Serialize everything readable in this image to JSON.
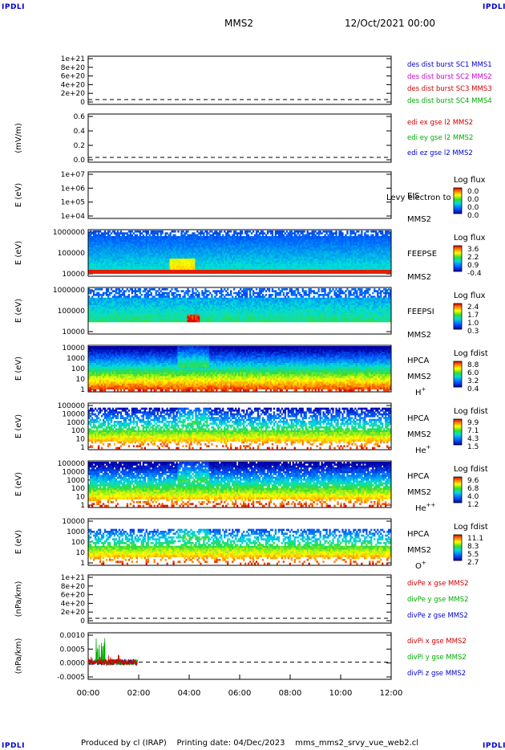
{
  "corner_label": "IPDLI",
  "header": {
    "spacecraft": "MMS2",
    "datetime": "12/Oct/2021 00:00"
  },
  "footer": "Produced by cl (IRAP)    Printing date: 04/Dec/2023    mms_mms2_srvy_vue_web2.cl",
  "chart_data": [
    {
      "type": "line",
      "id": "p1",
      "ylabel": "",
      "yticks": [
        "1e+21",
        "8e+20",
        "6e+20",
        "4e+20",
        "2e+20",
        "0"
      ],
      "series": [
        {
          "name": "des dist burst SC1 MMS1",
          "color": "#0000cc",
          "values": []
        },
        {
          "name": "des dist burst SC2 MMS2",
          "color": "#cc00cc",
          "values": []
        },
        {
          "name": "des dist burst SC3 MMS3",
          "color": "#cc0000",
          "values": []
        },
        {
          "name": "des dist burst SC4 MMS4",
          "color": "#00aa00",
          "values": []
        }
      ],
      "zero_line": true
    },
    {
      "type": "line",
      "id": "p2",
      "ylabel": "(mV/m)",
      "yticks": [
        "0.6",
        "0.4",
        "0.2",
        "0.0"
      ],
      "series": [
        {
          "name": "edi ex gse l2 MMS2",
          "color": "#cc0000",
          "values": []
        },
        {
          "name": "edi ey gse l2 MMS2",
          "color": "#00aa00",
          "values": []
        },
        {
          "name": "edi ez gse l2 MMS2",
          "color": "#0000cc",
          "values": []
        }
      ],
      "zero_line": true
    },
    {
      "type": "heatmap",
      "id": "p3",
      "ylabel": "E (eV)",
      "log": true,
      "yticks": [
        "1e+07",
        "1e+06",
        "1e+05",
        "1e+04"
      ],
      "instrument": "EIS",
      "spacecraft": "MMS2",
      "extra": "Levy electron to",
      "colorbar_title": "Log flux",
      "colorbar_ticks": [
        "0.0",
        "0.0",
        "0.0",
        "0.0"
      ],
      "fill": "none"
    },
    {
      "type": "heatmap",
      "id": "p4",
      "ylabel": "E (eV)",
      "log": true,
      "yticks": [
        "1000000",
        "100000",
        "10000"
      ],
      "instrument": "FEEPSE",
      "spacecraft": "MMS2",
      "colorbar_title": "Log flux",
      "colorbar_ticks": [
        "3.6",
        "2.2",
        "0.9",
        "-0.4"
      ],
      "fill": "feepse"
    },
    {
      "type": "heatmap",
      "id": "p5",
      "ylabel": "E (eV)",
      "log": true,
      "yticks": [
        "1000000",
        "100000",
        "10000"
      ],
      "instrument": "FEEPSI",
      "spacecraft": "MMS2",
      "colorbar_title": "Log flux",
      "colorbar_ticks": [
        "2.4",
        "1.7",
        "1.0",
        "0.3"
      ],
      "fill": "feepsi"
    },
    {
      "type": "heatmap",
      "id": "p6",
      "ylabel": "E (eV)",
      "log": true,
      "yticks": [
        "10000",
        "1000",
        "100",
        "10",
        "1"
      ],
      "instrument": "HPCA",
      "spacecraft": "MMS2",
      "species": "H",
      "charge": "+",
      "colorbar_title": "Log fdist",
      "colorbar_ticks": [
        "8.8",
        "6.0",
        "3.2",
        "0.4"
      ],
      "fill": "hplus"
    },
    {
      "type": "heatmap",
      "id": "p7",
      "ylabel": "E (eV)",
      "log": true,
      "yticks": [
        "100000",
        "10000",
        "1000",
        "100",
        "10",
        "1"
      ],
      "instrument": "HPCA",
      "spacecraft": "MMS2",
      "species": "He",
      "charge": "+",
      "colorbar_title": "Log fdist",
      "colorbar_ticks": [
        "9.9",
        "7.1",
        "4.3",
        "1.5"
      ],
      "fill": "heplus"
    },
    {
      "type": "heatmap",
      "id": "p8",
      "ylabel": "E (eV)",
      "log": true,
      "yticks": [
        "100000",
        "10000",
        "1000",
        "100",
        "10",
        "1"
      ],
      "instrument": "HPCA",
      "spacecraft": "MMS2",
      "species": "He",
      "charge": "++",
      "colorbar_title": "Log fdist",
      "colorbar_ticks": [
        "9.6",
        "6.8",
        "4.0",
        "1.2"
      ],
      "fill": "hepp"
    },
    {
      "type": "heatmap",
      "id": "p9",
      "ylabel": "E (eV)",
      "log": true,
      "yticks": [
        "10000",
        "1000",
        "100",
        "10",
        "1"
      ],
      "instrument": "HPCA",
      "spacecraft": "MMS2",
      "species": "O",
      "charge": "+",
      "colorbar_title": "Log fdist",
      "colorbar_ticks": [
        "11.1",
        "8.3",
        "5.5",
        "2.7"
      ],
      "fill": "oplus"
    },
    {
      "type": "line",
      "id": "p10",
      "ylabel": "(nPa/km)",
      "yticks": [
        "1e+21",
        "8e+20",
        "6e+20",
        "4e+20",
        "2e+20",
        "0"
      ],
      "series": [
        {
          "name": "divPe x gse MMS2",
          "color": "#cc0000",
          "values": []
        },
        {
          "name": "divPe y gse MMS2",
          "color": "#00aa00",
          "values": []
        },
        {
          "name": "divPe z gse MMS2",
          "color": "#0000cc",
          "values": []
        }
      ],
      "zero_line": true
    },
    {
      "type": "line",
      "id": "p11",
      "ylabel": "(nPa/km)",
      "yticks": [
        "0.0010",
        "0.0005",
        "0.0000",
        "-0.0005"
      ],
      "ylim": [
        -0.0007,
        0.0012
      ],
      "series": [
        {
          "name": "divPi x gse MMS2",
          "color": "#cc0000"
        },
        {
          "name": "divPi y gse MMS2",
          "color": "#00aa00"
        },
        {
          "name": "divPi z gse MMS2",
          "color": "#0000cc"
        }
      ],
      "data_range_hours": [
        0.0,
        1.95
      ],
      "zero_line": true
    }
  ],
  "x_axis": {
    "ticks": [
      "00:00",
      "02:00",
      "04:00",
      "06:00",
      "08:00",
      "10:00",
      "12:00"
    ],
    "range_hours": [
      0,
      12
    ]
  }
}
